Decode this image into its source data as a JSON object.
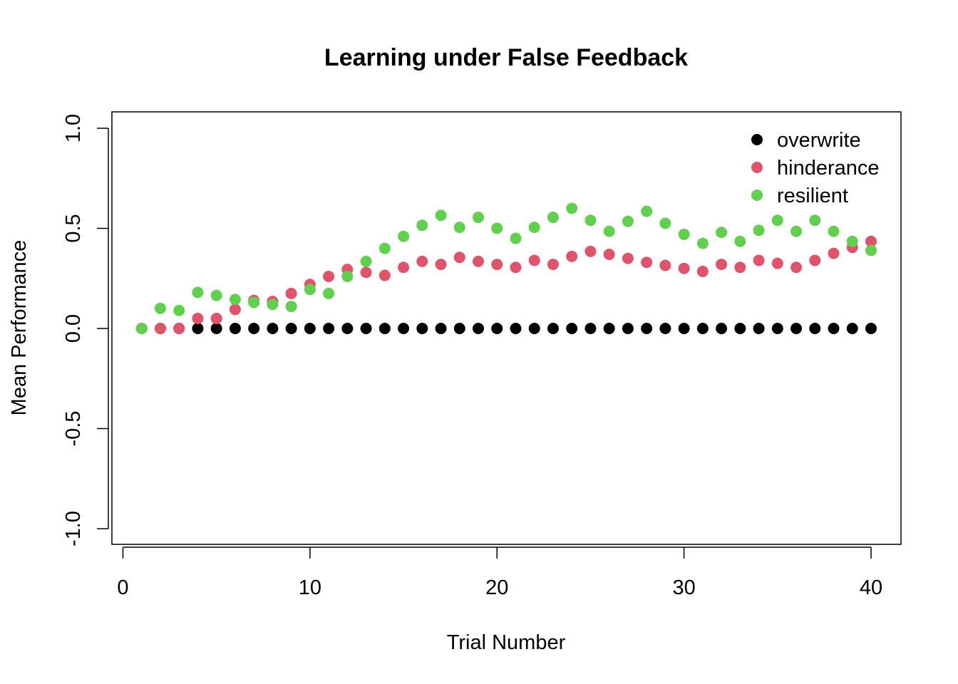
{
  "chart_data": {
    "type": "scatter",
    "title": "Learning under False Feedback",
    "xlabel": "Trial Number",
    "ylabel": "Mean Performance",
    "xlim": [
      0,
      40
    ],
    "ylim": [
      -1.0,
      1.0
    ],
    "xticks": [
      0,
      10,
      20,
      30,
      40
    ],
    "xtick_labels": [
      "0",
      "10",
      "20",
      "30",
      "40"
    ],
    "yticks": [
      -1.0,
      -0.5,
      0.0,
      0.5,
      1.0
    ],
    "ytick_labels": [
      "-1.0",
      "-0.5",
      "0.0",
      "0.5",
      "1.0"
    ],
    "grid": false,
    "legend_position": "top-right",
    "x": [
      1,
      2,
      3,
      4,
      5,
      6,
      7,
      8,
      9,
      10,
      11,
      12,
      13,
      14,
      15,
      16,
      17,
      18,
      19,
      20,
      21,
      22,
      23,
      24,
      25,
      26,
      27,
      28,
      29,
      30,
      31,
      32,
      33,
      34,
      35,
      36,
      37,
      38,
      39,
      40
    ],
    "series": [
      {
        "name": "overwrite",
        "color": "#000000",
        "values": [
          0,
          0,
          0,
          0,
          0,
          0,
          0,
          0,
          0,
          0,
          0,
          0,
          0,
          0,
          0,
          0,
          0,
          0,
          0,
          0,
          0,
          0,
          0,
          0,
          0,
          0,
          0,
          0,
          0,
          0,
          0,
          0,
          0,
          0,
          0,
          0,
          0,
          0,
          0,
          0
        ]
      },
      {
        "name": "hinderance",
        "color": "#DF536B",
        "values": [
          0,
          0,
          0,
          0.05,
          0.05,
          0.095,
          0.14,
          0.135,
          0.175,
          0.22,
          0.26,
          0.295,
          0.28,
          0.265,
          0.305,
          0.335,
          0.32,
          0.355,
          0.335,
          0.32,
          0.305,
          0.34,
          0.32,
          0.36,
          0.385,
          0.37,
          0.35,
          0.33,
          0.315,
          0.3,
          0.285,
          0.32,
          0.305,
          0.34,
          0.325,
          0.305,
          0.34,
          0.375,
          0.405,
          0.435
        ]
      },
      {
        "name": "resilient",
        "color": "#61D04F",
        "values": [
          0,
          0.1,
          0.09,
          0.18,
          0.165,
          0.145,
          0.13,
          0.12,
          0.11,
          0.195,
          0.175,
          0.26,
          0.335,
          0.4,
          0.46,
          0.515,
          0.565,
          0.505,
          0.555,
          0.5,
          0.45,
          0.505,
          0.555,
          0.6,
          0.54,
          0.485,
          0.535,
          0.585,
          0.525,
          0.47,
          0.425,
          0.48,
          0.435,
          0.49,
          0.54,
          0.485,
          0.54,
          0.485,
          0.435,
          0.39
        ]
      }
    ]
  }
}
